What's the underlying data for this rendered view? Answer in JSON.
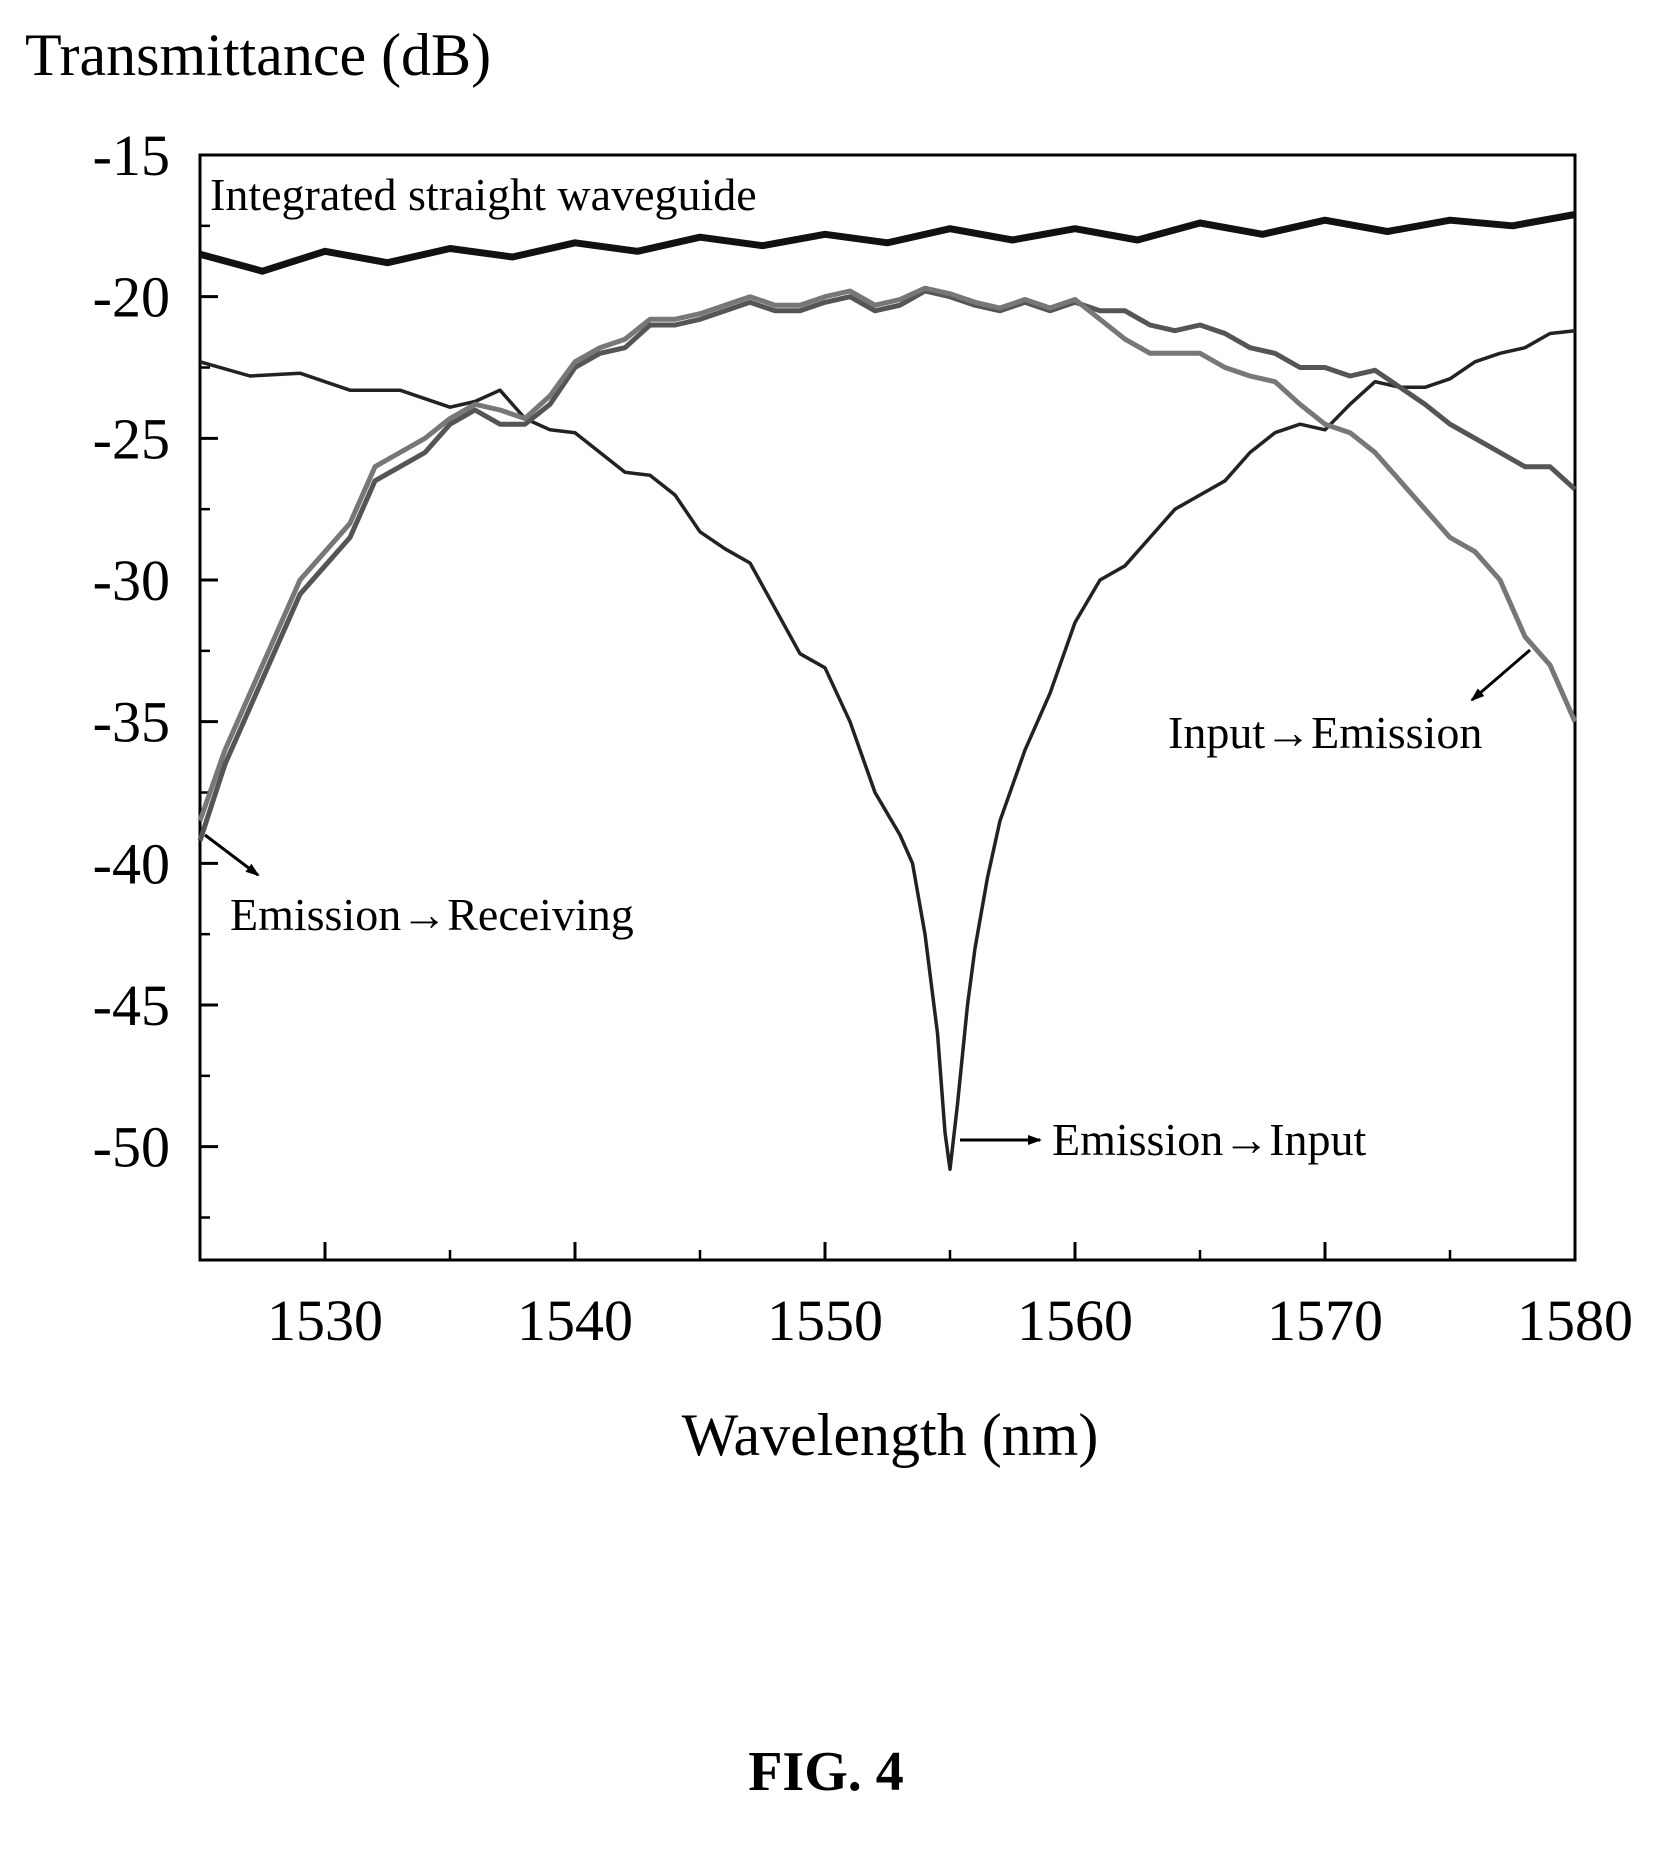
{
  "figure": {
    "caption": "FIG. 4"
  },
  "chart_data": {
    "type": "line",
    "ylabel": "Transmittance (dB)",
    "xlabel": "Wavelength (nm)",
    "xlim": [
      1525,
      1580
    ],
    "ylim": [
      -54,
      -15
    ],
    "xticks": [
      1530,
      1540,
      1550,
      1560,
      1570,
      1580
    ],
    "yticks": [
      -15,
      -20,
      -25,
      -30,
      -35,
      -40,
      -45,
      -50
    ],
    "xtick_labels": [
      "1530",
      "1540",
      "1550",
      "1560",
      "1570",
      "1580"
    ],
    "ytick_labels": [
      "-15",
      "-20",
      "-25",
      "-30",
      "-35",
      "-40",
      "-45",
      "-50"
    ],
    "grid": false,
    "series": [
      {
        "name": "Integrated straight waveguide",
        "color": "#111111",
        "x": [
          1525,
          1527.5,
          1530,
          1532.5,
          1535,
          1537.5,
          1540,
          1542.5,
          1545,
          1547.5,
          1550,
          1552.5,
          1555,
          1557.5,
          1560,
          1562.5,
          1565,
          1567.5,
          1570,
          1572.5,
          1575,
          1577.5,
          1580
        ],
        "y": [
          -18.5,
          -19.1,
          -18.4,
          -18.8,
          -18.3,
          -18.6,
          -18.1,
          -18.4,
          -17.9,
          -18.2,
          -17.8,
          -18.1,
          -17.6,
          -18.0,
          -17.6,
          -18.0,
          -17.4,
          -17.8,
          -17.3,
          -17.7,
          -17.3,
          -17.5,
          -17.1
        ]
      },
      {
        "name": "Emission→Input",
        "color": "#222222",
        "x": [
          1525,
          1527,
          1529,
          1531,
          1533,
          1535,
          1536,
          1537,
          1538,
          1539,
          1540,
          1541,
          1542,
          1543,
          1544,
          1545,
          1546,
          1547,
          1548,
          1549,
          1550,
          1551,
          1552,
          1553,
          1553.5,
          1554,
          1554.5,
          1554.8,
          1555,
          1555.3,
          1555.7,
          1556,
          1556.5,
          1557,
          1558,
          1559,
          1560,
          1561,
          1562,
          1563,
          1564,
          1565,
          1566,
          1567,
          1568,
          1569,
          1570,
          1571,
          1572,
          1573,
          1574,
          1575,
          1576,
          1577,
          1578,
          1579,
          1580
        ],
        "y": [
          -22.3,
          -22.8,
          -22.7,
          -23.3,
          -23.3,
          -23.9,
          -23.7,
          -23.3,
          -24.3,
          -24.7,
          -24.8,
          -25.5,
          -26.2,
          -26.3,
          -27.0,
          -28.3,
          -28.9,
          -29.4,
          -31.0,
          -32.6,
          -33.1,
          -35.0,
          -37.5,
          -39.0,
          -40.0,
          -42.5,
          -46.0,
          -49.5,
          -50.8,
          -48.5,
          -45.0,
          -43.0,
          -40.5,
          -38.5,
          -36.0,
          -34.0,
          -31.5,
          -30.0,
          -29.5,
          -28.5,
          -27.5,
          -27.0,
          -26.5,
          -25.5,
          -24.8,
          -24.5,
          -24.7,
          -23.8,
          -23.0,
          -23.2,
          -23.2,
          -22.9,
          -22.3,
          -22.0,
          -21.8,
          -21.3,
          -21.2
        ]
      },
      {
        "name": "Emission→Receiving",
        "color": "#555555",
        "x": [
          1525,
          1526,
          1527,
          1528,
          1529,
          1530,
          1531,
          1532,
          1533,
          1534,
          1535,
          1536,
          1537,
          1538,
          1539,
          1540,
          1541,
          1542,
          1543,
          1544,
          1545,
          1546,
          1547,
          1548,
          1549,
          1550,
          1551,
          1552,
          1553,
          1554,
          1555,
          1556,
          1557,
          1558,
          1559,
          1560,
          1561,
          1562,
          1563,
          1564,
          1565,
          1566,
          1567,
          1568,
          1569,
          1570,
          1571,
          1572,
          1573,
          1574,
          1575,
          1576,
          1577,
          1578,
          1579,
          1580
        ],
        "y": [
          -39.2,
          -36.5,
          -34.5,
          -32.5,
          -30.5,
          -29.5,
          -28.5,
          -26.5,
          -26.0,
          -25.5,
          -24.5,
          -24.0,
          -24.5,
          -24.5,
          -23.8,
          -22.5,
          -22.0,
          -21.8,
          -21.0,
          -21.0,
          -20.8,
          -20.5,
          -20.2,
          -20.5,
          -20.5,
          -20.2,
          -20.0,
          -20.5,
          -20.3,
          -19.8,
          -20.0,
          -20.3,
          -20.5,
          -20.2,
          -20.5,
          -20.2,
          -20.5,
          -20.5,
          -21.0,
          -21.2,
          -21.0,
          -21.3,
          -21.8,
          -22.0,
          -22.5,
          -22.5,
          -22.8,
          -22.6,
          -23.2,
          -23.8,
          -24.5,
          -25.0,
          -25.5,
          -26.0,
          -26.0,
          -26.8
        ]
      },
      {
        "name": "Input→Emission",
        "color": "#777777",
        "x": [
          1525,
          1526,
          1527,
          1528,
          1529,
          1530,
          1531,
          1532,
          1533,
          1534,
          1535,
          1536,
          1537,
          1538,
          1539,
          1540,
          1541,
          1542,
          1543,
          1544,
          1545,
          1546,
          1547,
          1548,
          1549,
          1550,
          1551,
          1552,
          1553,
          1554,
          1555,
          1556,
          1557,
          1558,
          1559,
          1560,
          1561,
          1562,
          1563,
          1564,
          1565,
          1566,
          1567,
          1568,
          1569,
          1570,
          1571,
          1572,
          1573,
          1574,
          1575,
          1576,
          1577,
          1578,
          1579,
          1580
        ],
        "y": [
          -38.5,
          -36.0,
          -34.0,
          -32.0,
          -30.0,
          -29.0,
          -28.0,
          -26.0,
          -25.5,
          -25.0,
          -24.3,
          -23.8,
          -24.0,
          -24.3,
          -23.5,
          -22.3,
          -21.8,
          -21.5,
          -20.8,
          -20.8,
          -20.6,
          -20.3,
          -20.0,
          -20.3,
          -20.3,
          -20.0,
          -19.8,
          -20.3,
          -20.1,
          -19.7,
          -19.9,
          -20.2,
          -20.4,
          -20.1,
          -20.4,
          -20.1,
          -20.8,
          -21.5,
          -22.0,
          -22.0,
          -22.0,
          -22.5,
          -22.8,
          -23.0,
          -23.8,
          -24.5,
          -24.8,
          -25.5,
          -26.5,
          -27.5,
          -28.5,
          -29.0,
          -30.0,
          -32.0,
          -33.0,
          -35.0
        ]
      }
    ],
    "annotations": [
      {
        "text": "Integrated straight waveguide",
        "target": "Integrated straight waveguide"
      },
      {
        "text": "Emission→Receiving",
        "target": "Emission→Receiving"
      },
      {
        "text": "Emission→Input",
        "target": "Emission→Input"
      },
      {
        "text": "Input→Emission",
        "target": "Input→Emission"
      }
    ]
  }
}
